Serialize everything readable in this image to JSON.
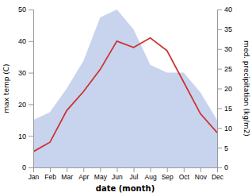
{
  "chart_data": {
    "type": "line",
    "categories": [
      "Jan",
      "Feb",
      "Mar",
      "Apr",
      "May",
      "Jun",
      "Jul",
      "Aug",
      "Sep",
      "Oct",
      "Nov",
      "Dec"
    ],
    "series": [
      {
        "type": "area",
        "axis": "y2",
        "color": "#c8d4ee",
        "values": [
          12.0,
          14.0,
          20.0,
          27.0,
          38.0,
          40.0,
          35.0,
          26.0,
          24.0,
          24.0,
          19.0,
          12.0
        ]
      },
      {
        "type": "line",
        "color": "#cc3333",
        "values": [
          5.0,
          8.0,
          18.0,
          24.0,
          31.0,
          40.0,
          38.0,
          41.0,
          37.0,
          27.0,
          17.0,
          11.0
        ]
      }
    ],
    "x_label": "date (month)",
    "y_label": "max temp (C)",
    "y2_label": "med. precipitation (kg/m2)",
    "ylim": [
      0,
      50
    ],
    "yticks": [
      0,
      10,
      20,
      30,
      40,
      50
    ],
    "y2lim": [
      0,
      40
    ],
    "y2ticks": [
      0,
      5,
      10,
      15,
      20,
      25,
      30,
      35,
      40
    ],
    "grid": false
  }
}
